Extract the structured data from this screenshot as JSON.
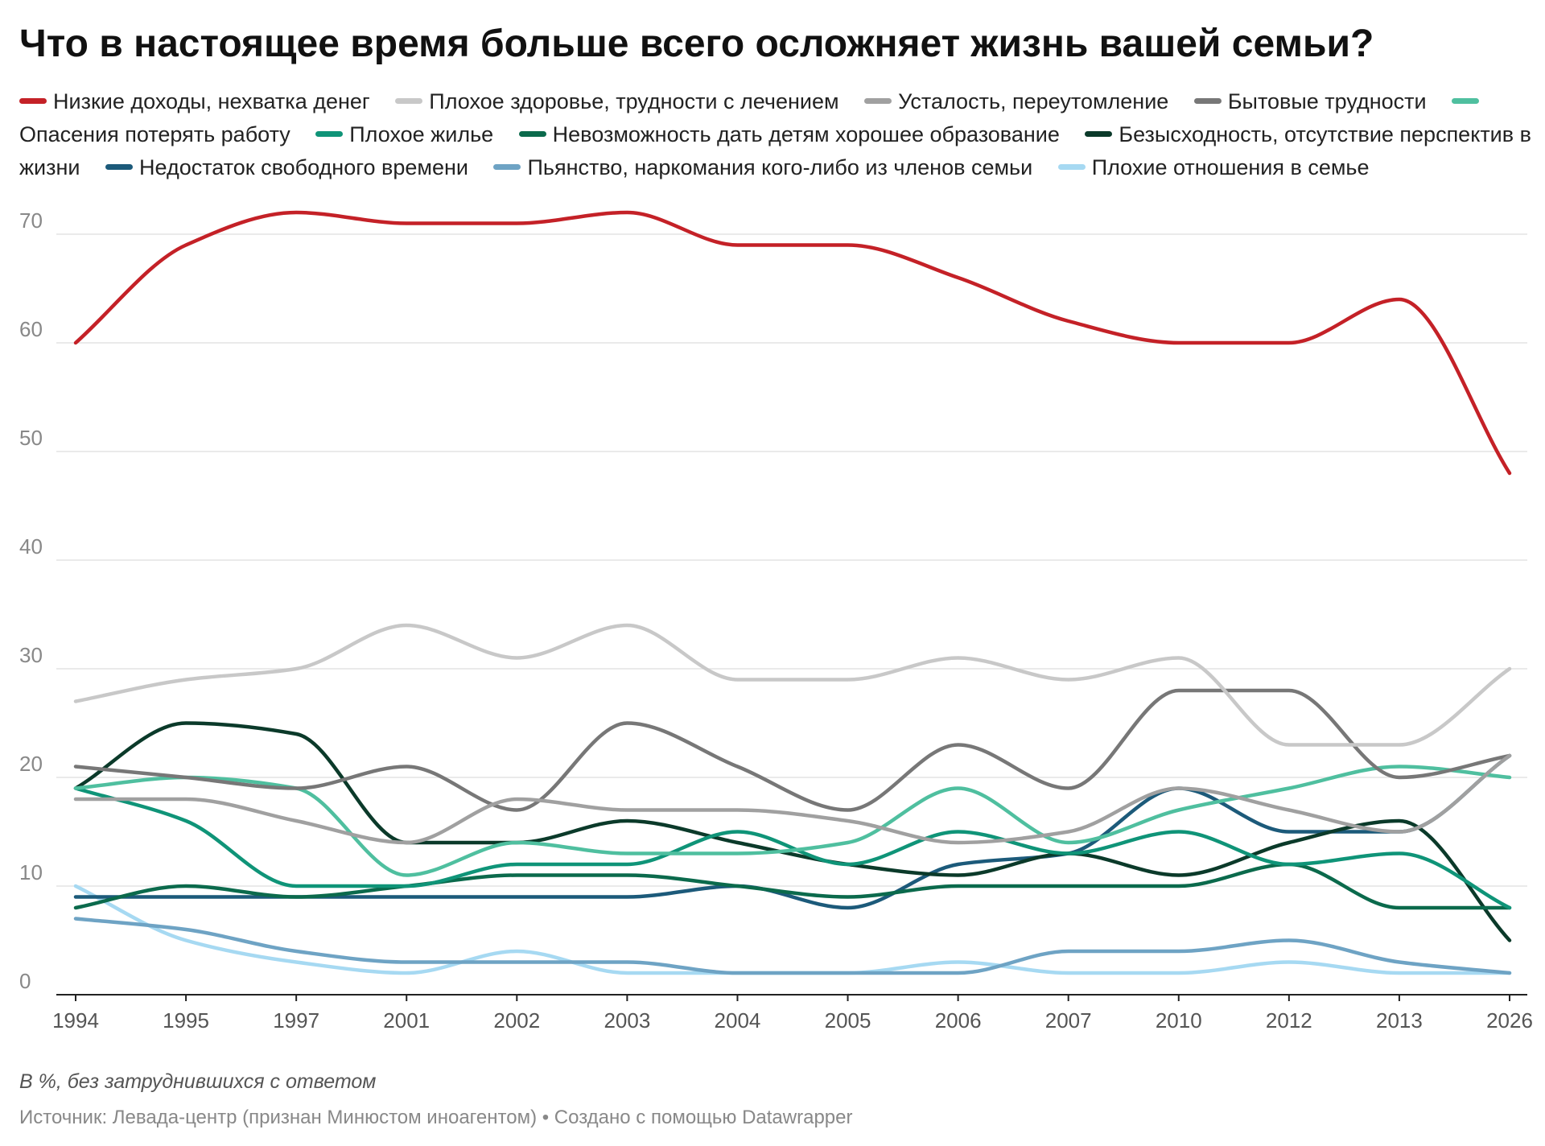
{
  "chart_data": {
    "type": "line",
    "title": "Что в настоящее время больше всего осложняет жизнь вашей семьи?",
    "x": [
      "1994",
      "1995",
      "1997",
      "2001",
      "2002",
      "2003",
      "2004",
      "2005",
      "2006",
      "2007",
      "2010",
      "2012",
      "2013",
      "2026"
    ],
    "y_ticks": [
      "0",
      "10",
      "20",
      "30",
      "40",
      "50",
      "60",
      "70"
    ],
    "ylim": [
      0,
      72
    ],
    "grid": true,
    "legend_position": "top",
    "series": [
      {
        "name": "Низкие доходы, нехватка денег",
        "color": "#c42127",
        "values": [
          60,
          69,
          72,
          71,
          71,
          72,
          69,
          69,
          66,
          62,
          60,
          60,
          64,
          48
        ]
      },
      {
        "name": "Плохое здоровье, трудности с лечением",
        "color": "#c8c8c8",
        "values": [
          27,
          29,
          30,
          34,
          31,
          34,
          29,
          29,
          31,
          29,
          31,
          23,
          23,
          30
        ]
      },
      {
        "name": "Усталость, переутомление",
        "color": "#a0a0a0",
        "values": [
          18,
          18,
          16,
          14,
          18,
          17,
          17,
          16,
          14,
          15,
          19,
          17,
          15,
          22
        ]
      },
      {
        "name": "Бытовые трудности",
        "color": "#777777",
        "values": [
          21,
          20,
          19,
          21,
          17,
          25,
          21,
          17,
          23,
          19,
          28,
          28,
          20,
          22
        ]
      },
      {
        "name": "Опасения потерять работу",
        "color": "#4fbf9f",
        "values": [
          19,
          20,
          19,
          11,
          14,
          13,
          13,
          14,
          19,
          14,
          17,
          19,
          21,
          20
        ]
      },
      {
        "name": "Плохое жилье",
        "color": "#0f9478",
        "values": [
          19,
          16,
          10,
          10,
          12,
          12,
          15,
          12,
          15,
          13,
          15,
          12,
          13,
          8
        ]
      },
      {
        "name": "Невозможность дать детям хорошее образование",
        "color": "#0b6a4c",
        "values": [
          8,
          10,
          9,
          10,
          11,
          11,
          10,
          9,
          10,
          10,
          10,
          12,
          8,
          8
        ]
      },
      {
        "name": "Безысходность, отсутствие перспектив в жизни",
        "color": "#0b3a2a",
        "values": [
          19,
          25,
          24,
          14,
          14,
          16,
          14,
          12,
          11,
          13,
          11,
          14,
          16,
          5
        ]
      },
      {
        "name": "Недостаток свободного времени",
        "color": "#1c5a7a",
        "values": [
          9,
          9,
          9,
          9,
          9,
          9,
          10,
          8,
          12,
          13,
          19,
          15,
          15,
          22
        ]
      },
      {
        "name": "Пьянство, наркомания кого-либо из членов семьи",
        "color": "#6ea3c4",
        "values": [
          7,
          6,
          4,
          3,
          3,
          3,
          2,
          2,
          2,
          4,
          4,
          5,
          3,
          2
        ]
      },
      {
        "name": "Плохие отношения в семье",
        "color": "#a6d9f2",
        "values": [
          10,
          5,
          3,
          2,
          4,
          2,
          2,
          2,
          3,
          2,
          2,
          3,
          2,
          2
        ]
      }
    ],
    "note": "В %, без затруднившихся с ответом",
    "source": "Источник: Левада-центр (признан Минюстом иноагентом) • Создано с помощью Datawrapper"
  }
}
